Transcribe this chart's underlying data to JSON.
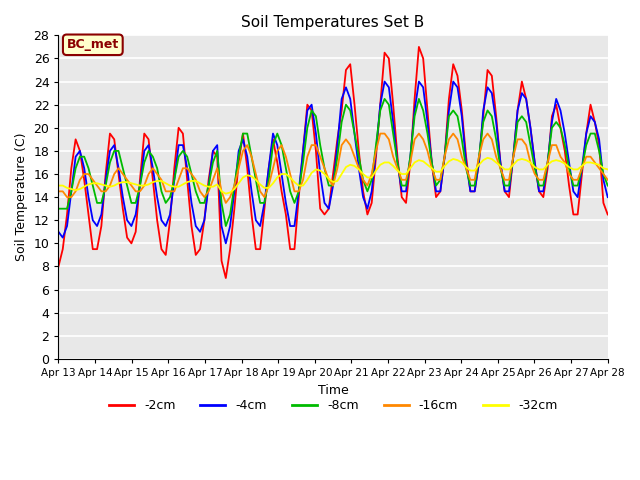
{
  "title": "Soil Temperatures Set B",
  "xlabel": "Time",
  "ylabel": "Soil Temperature (C)",
  "ylim": [
    0,
    28
  ],
  "yticks": [
    0,
    2,
    4,
    6,
    8,
    10,
    12,
    14,
    16,
    18,
    20,
    22,
    24,
    26,
    28
  ],
  "xtick_labels": [
    "Apr 13",
    "Apr 14",
    "Apr 15",
    "Apr 16",
    "Apr 17",
    "Apr 18",
    "Apr 19",
    "Apr 20",
    "Apr 21",
    "Apr 22",
    "Apr 23",
    "Apr 24",
    "Apr 25",
    "Apr 26",
    "Apr 27",
    "Apr 28"
  ],
  "label_box_text": "BC_met",
  "label_box_facecolor": "#FFFFCC",
  "label_box_edgecolor": "#8B0000",
  "label_box_textcolor": "#8B0000",
  "colors": {
    "-2cm": "#FF0000",
    "-4cm": "#0000FF",
    "-8cm": "#00BB00",
    "-16cm": "#FF8800",
    "-32cm": "#FFFF00"
  },
  "line_width": 1.3,
  "fig_facecolor": "#FFFFFF",
  "plot_bg_color": "#E8E8E8",
  "grid_color": "#FFFFFF",
  "d2": [
    8.0,
    9.5,
    12.5,
    16.5,
    19.0,
    18.0,
    15.5,
    12.5,
    9.5,
    9.5,
    11.5,
    16.0,
    19.5,
    19.0,
    16.0,
    13.0,
    10.5,
    10.0,
    11.0,
    15.5,
    19.5,
    19.0,
    15.5,
    12.0,
    9.5,
    9.0,
    12.0,
    16.5,
    20.0,
    19.5,
    15.5,
    11.5,
    9.0,
    9.5,
    12.0,
    15.5,
    18.0,
    17.5,
    8.5,
    7.0,
    9.5,
    13.0,
    17.0,
    19.5,
    16.5,
    12.5,
    9.5,
    9.5,
    13.0,
    16.5,
    19.0,
    17.0,
    14.5,
    12.5,
    9.5,
    9.5,
    14.0,
    18.0,
    22.0,
    21.5,
    18.0,
    13.0,
    12.5,
    13.0,
    16.0,
    19.0,
    21.5,
    25.0,
    25.5,
    22.0,
    18.0,
    14.5,
    12.5,
    13.5,
    17.5,
    22.0,
    26.5,
    26.0,
    22.0,
    17.5,
    14.0,
    13.5,
    17.0,
    22.5,
    27.0,
    26.0,
    21.5,
    17.0,
    14.0,
    14.5,
    17.5,
    22.5,
    25.5,
    24.5,
    21.5,
    17.5,
    14.5,
    14.5,
    17.0,
    21.0,
    25.0,
    24.5,
    21.0,
    17.0,
    14.5,
    14.0,
    17.5,
    21.5,
    24.0,
    22.5,
    20.0,
    17.0,
    14.5,
    14.0,
    16.5,
    21.0,
    22.0,
    20.0,
    18.0,
    15.0,
    12.5,
    12.5,
    16.0,
    19.5,
    22.0,
    20.5,
    18.5,
    13.5,
    12.5
  ],
  "d4": [
    11.0,
    10.5,
    11.5,
    14.5,
    17.5,
    18.0,
    16.5,
    14.0,
    12.0,
    11.5,
    12.5,
    15.5,
    18.0,
    18.5,
    16.5,
    14.0,
    12.0,
    11.5,
    12.5,
    15.0,
    18.0,
    18.5,
    16.5,
    14.0,
    12.0,
    11.5,
    12.5,
    15.5,
    18.5,
    18.5,
    16.5,
    13.5,
    11.5,
    11.0,
    12.0,
    15.0,
    18.0,
    18.5,
    11.5,
    10.0,
    11.5,
    14.5,
    18.0,
    19.0,
    17.5,
    14.5,
    12.0,
    11.5,
    13.5,
    16.5,
    19.5,
    18.5,
    16.0,
    13.5,
    11.5,
    11.5,
    14.5,
    18.0,
    21.5,
    22.0,
    19.5,
    16.0,
    13.5,
    13.0,
    15.0,
    18.5,
    22.5,
    23.5,
    22.5,
    19.5,
    16.5,
    14.0,
    13.0,
    14.5,
    18.0,
    22.0,
    24.0,
    23.5,
    20.5,
    17.0,
    14.5,
    14.5,
    17.5,
    21.5,
    24.0,
    23.5,
    20.5,
    17.0,
    14.5,
    14.5,
    17.5,
    21.5,
    24.0,
    23.5,
    21.0,
    17.0,
    14.5,
    14.5,
    17.0,
    21.5,
    23.5,
    23.0,
    20.5,
    17.0,
    14.5,
    14.5,
    17.5,
    21.5,
    23.0,
    22.5,
    20.0,
    17.0,
    14.5,
    14.5,
    17.0,
    20.5,
    22.5,
    21.5,
    19.5,
    17.0,
    14.5,
    14.0,
    16.5,
    19.5,
    21.0,
    20.5,
    19.0,
    15.5,
    14.0
  ],
  "d8": [
    13.0,
    13.0,
    13.0,
    14.5,
    16.5,
    17.5,
    17.5,
    16.5,
    15.0,
    13.5,
    13.5,
    15.0,
    17.0,
    18.0,
    18.0,
    16.5,
    15.0,
    13.5,
    13.5,
    15.0,
    17.0,
    18.0,
    17.5,
    16.5,
    14.5,
    13.5,
    14.0,
    15.5,
    17.5,
    18.0,
    17.5,
    16.0,
    14.5,
    13.5,
    13.5,
    15.0,
    17.0,
    18.0,
    13.5,
    11.5,
    12.5,
    15.0,
    17.5,
    19.5,
    19.5,
    17.5,
    15.5,
    13.5,
    13.5,
    15.5,
    18.5,
    19.5,
    18.5,
    16.5,
    14.5,
    13.5,
    14.5,
    17.0,
    20.0,
    21.5,
    21.0,
    18.5,
    16.5,
    15.0,
    15.0,
    17.5,
    20.5,
    22.0,
    21.5,
    19.5,
    17.5,
    15.5,
    14.5,
    15.5,
    18.5,
    21.5,
    22.5,
    22.0,
    19.5,
    17.0,
    15.0,
    15.0,
    17.5,
    21.0,
    22.5,
    21.5,
    19.5,
    17.0,
    15.0,
    15.5,
    17.5,
    21.0,
    21.5,
    21.0,
    19.0,
    16.5,
    15.0,
    15.0,
    17.5,
    20.5,
    21.5,
    21.0,
    19.0,
    16.5,
    15.0,
    15.0,
    17.5,
    20.5,
    21.0,
    20.5,
    18.5,
    16.5,
    15.0,
    15.0,
    17.0,
    20.0,
    20.5,
    20.0,
    18.5,
    16.5,
    15.0,
    15.0,
    16.5,
    18.5,
    19.5,
    19.5,
    18.0,
    16.0,
    15.0
  ],
  "d16": [
    14.5,
    14.5,
    14.0,
    14.0,
    14.5,
    15.5,
    16.0,
    16.0,
    15.5,
    15.0,
    14.5,
    14.5,
    15.0,
    16.0,
    16.5,
    16.0,
    15.5,
    15.0,
    14.5,
    14.5,
    15.0,
    16.0,
    16.5,
    16.0,
    15.5,
    14.5,
    14.5,
    14.5,
    15.5,
    16.5,
    16.5,
    16.0,
    15.5,
    14.5,
    14.0,
    14.5,
    15.5,
    16.5,
    14.5,
    13.5,
    14.0,
    15.0,
    16.5,
    18.0,
    18.5,
    17.5,
    16.0,
    14.5,
    14.0,
    15.0,
    16.5,
    18.0,
    18.5,
    17.5,
    16.0,
    14.5,
    14.5,
    15.5,
    17.5,
    18.5,
    18.5,
    17.5,
    16.5,
    15.5,
    15.0,
    16.5,
    18.5,
    19.0,
    18.5,
    17.5,
    16.5,
    15.5,
    15.0,
    16.0,
    18.0,
    19.5,
    19.5,
    19.0,
    17.5,
    16.5,
    15.5,
    15.5,
    17.0,
    19.0,
    19.5,
    19.0,
    18.0,
    16.5,
    15.5,
    15.5,
    17.5,
    19.0,
    19.5,
    19.0,
    17.5,
    16.5,
    15.5,
    15.5,
    17.5,
    19.0,
    19.5,
    19.0,
    17.5,
    16.5,
    15.5,
    15.5,
    17.5,
    19.0,
    19.0,
    18.5,
    17.0,
    16.0,
    15.5,
    15.5,
    17.0,
    18.5,
    18.5,
    17.5,
    17.0,
    16.0,
    15.5,
    15.5,
    16.5,
    17.5,
    17.5,
    17.0,
    16.5,
    16.0,
    15.5
  ],
  "d32": [
    15.0,
    15.0,
    14.8,
    14.7,
    14.6,
    14.7,
    14.9,
    15.1,
    15.2,
    15.2,
    15.1,
    15.0,
    14.9,
    15.0,
    15.2,
    15.3,
    15.3,
    15.2,
    15.1,
    15.0,
    15.0,
    15.1,
    15.3,
    15.4,
    15.4,
    15.2,
    15.0,
    14.9,
    14.9,
    15.1,
    15.3,
    15.4,
    15.4,
    15.2,
    15.0,
    14.9,
    14.9,
    15.1,
    14.5,
    14.3,
    14.4,
    14.7,
    15.2,
    15.7,
    15.9,
    15.8,
    15.5,
    15.1,
    14.8,
    14.8,
    15.2,
    15.7,
    16.0,
    16.0,
    15.7,
    15.3,
    15.0,
    15.0,
    15.5,
    16.1,
    16.4,
    16.3,
    16.0,
    15.6,
    15.3,
    15.4,
    16.0,
    16.6,
    16.8,
    16.7,
    16.4,
    16.0,
    15.7,
    15.7,
    16.3,
    16.8,
    17.0,
    17.0,
    16.7,
    16.3,
    16.0,
    16.0,
    16.5,
    17.0,
    17.2,
    17.1,
    16.8,
    16.5,
    16.2,
    16.2,
    16.7,
    17.1,
    17.3,
    17.2,
    17.0,
    16.6,
    16.3,
    16.3,
    16.8,
    17.2,
    17.4,
    17.3,
    17.0,
    16.7,
    16.4,
    16.4,
    16.8,
    17.2,
    17.3,
    17.2,
    17.0,
    16.6,
    16.4,
    16.4,
    16.8,
    17.1,
    17.2,
    17.1,
    16.9,
    16.6,
    16.4,
    16.4,
    16.7,
    17.0,
    17.0,
    16.9,
    16.8,
    16.5,
    16.4
  ]
}
